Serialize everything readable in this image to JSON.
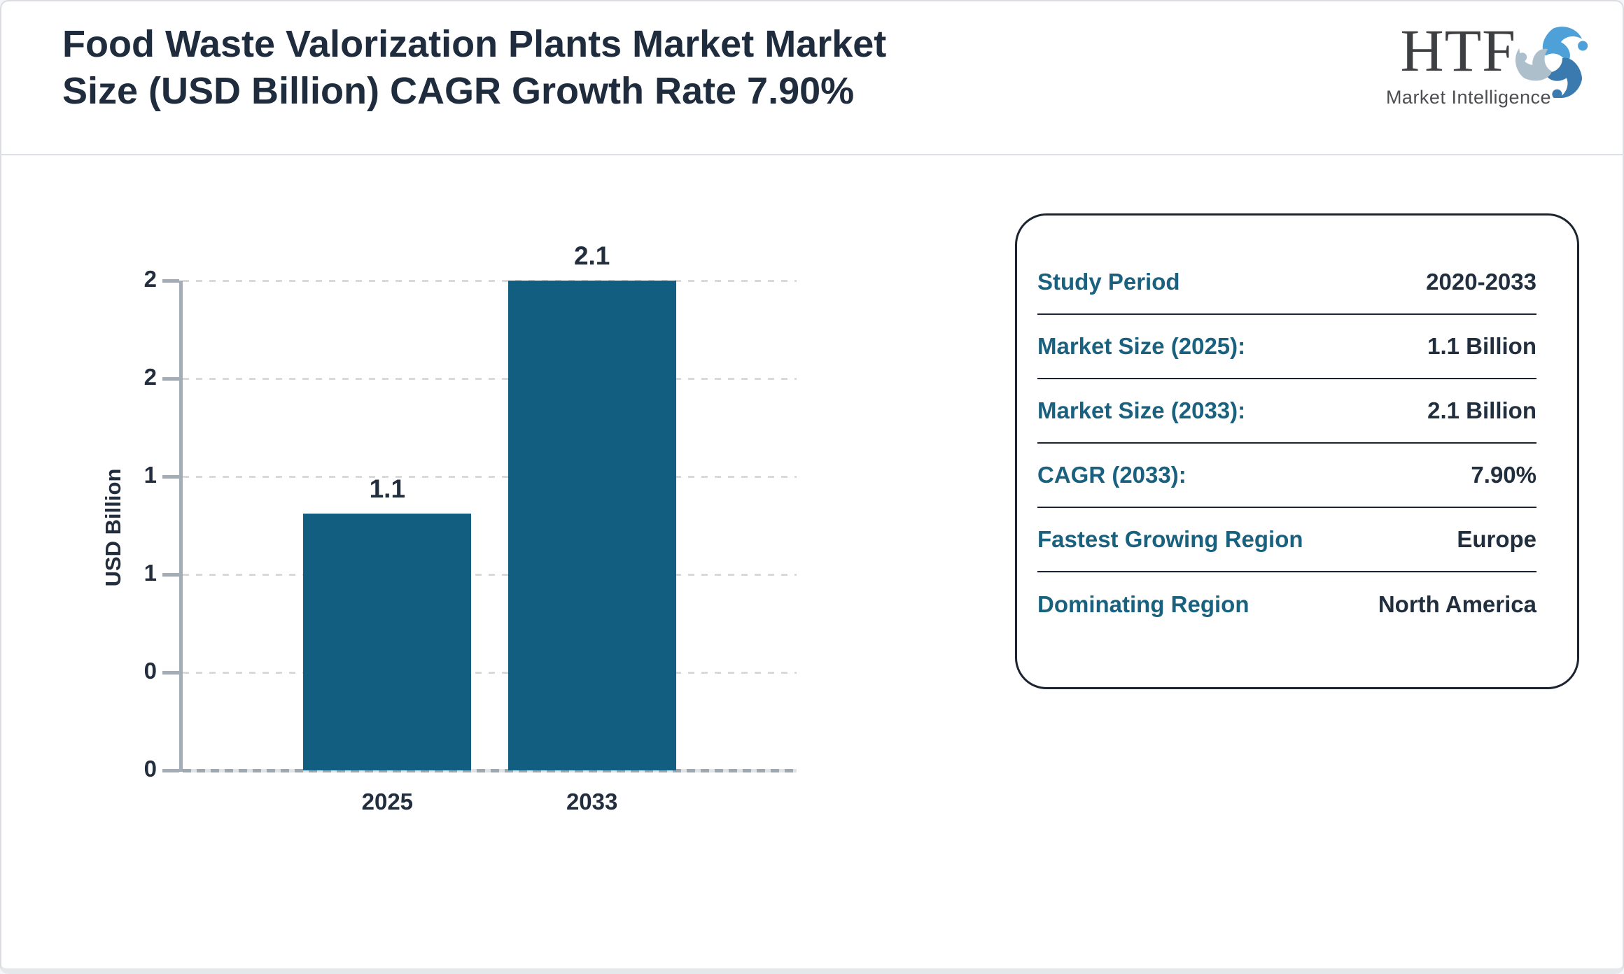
{
  "header": {
    "title": "Food Waste Valorization Plants Market Market Size (USD Billion) CAGR Growth Rate 7.90%",
    "logo": {
      "name": "HTF",
      "subtitle": "Market Intelligence",
      "colors": {
        "swoosh_top": "#4da0d8",
        "swoosh_left": "#aebfcc",
        "swoosh_bottom": "#3a7aae"
      }
    }
  },
  "chart_data": {
    "type": "bar",
    "title": "Food Waste Valorization Plants Market Market Size (USD Billion) CAGR Growth Rate 7.90%",
    "categories": [
      "2025",
      "2033"
    ],
    "values": [
      1.1,
      2.1
    ],
    "bar_labels": [
      "1.1",
      "2.1"
    ],
    "xlabel": "",
    "ylabel": "USD Billion",
    "ylim": [
      0,
      2.1
    ],
    "y_tick_labels_bottom_to_top": [
      "0",
      "0",
      "1",
      "1",
      "2",
      "2"
    ],
    "grid": "horizontal-dashed",
    "legend": "none",
    "bar_color": "#115e80",
    "axis_color": "#a4adb5",
    "tick_text_color": "#222e3e"
  },
  "summary_card": {
    "rows": [
      {
        "label": "Study Period",
        "value": "2020-2033"
      },
      {
        "label": "Market Size (2025):",
        "value": "1.1 Billion"
      },
      {
        "label": "Market Size (2033):",
        "value": "2.1 Billion"
      },
      {
        "label": "CAGR (2033):",
        "value": "7.90%"
      },
      {
        "label": "Fastest Growing Region",
        "value": "Europe"
      },
      {
        "label": "Dominating Region",
        "value": "North America"
      }
    ],
    "label_color": "#19617f",
    "value_color": "#212e3e"
  }
}
